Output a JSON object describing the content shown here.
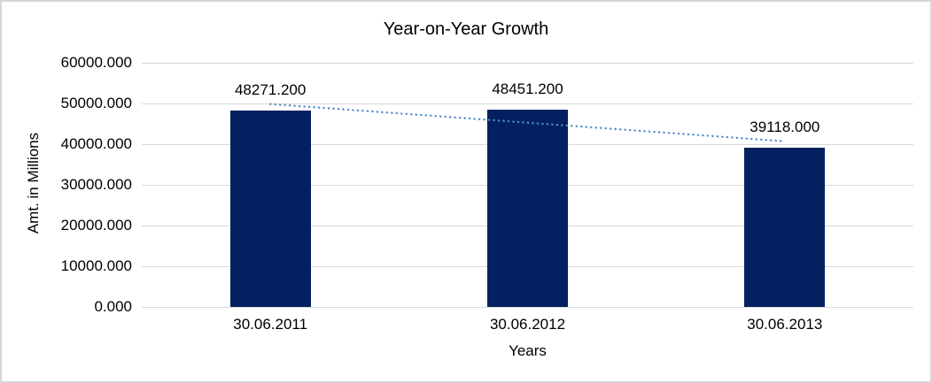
{
  "chart_data": {
    "type": "bar",
    "title": "Year-on-Year Growth",
    "xlabel": "Years",
    "ylabel": "Amt. in Millions",
    "categories": [
      "30.06.2011",
      "30.06.2012",
      "30.06.2013"
    ],
    "values": [
      48271.2,
      48451.2,
      39118.0
    ],
    "value_labels": [
      "48271.200",
      "48451.200",
      "39118.000"
    ],
    "ylim": [
      0,
      60000
    ],
    "ytick_values": [
      0,
      10000,
      20000,
      30000,
      40000,
      50000,
      60000
    ],
    "ytick_labels": [
      "0.000",
      "10000.000",
      "20000.000",
      "30000.000",
      "40000.000",
      "50000.000",
      "60000.000"
    ],
    "grid": true,
    "legend": "none",
    "colors": {
      "bar": "#032160",
      "trendline": "#4f8bcd",
      "gridline": "#d9d9d9",
      "text": "#000000",
      "frame_border": "#d6d6d6"
    },
    "trendline": {
      "type": "linear",
      "style": "dotted",
      "start_value": 49856.7,
      "end_value": 40703.5
    }
  }
}
